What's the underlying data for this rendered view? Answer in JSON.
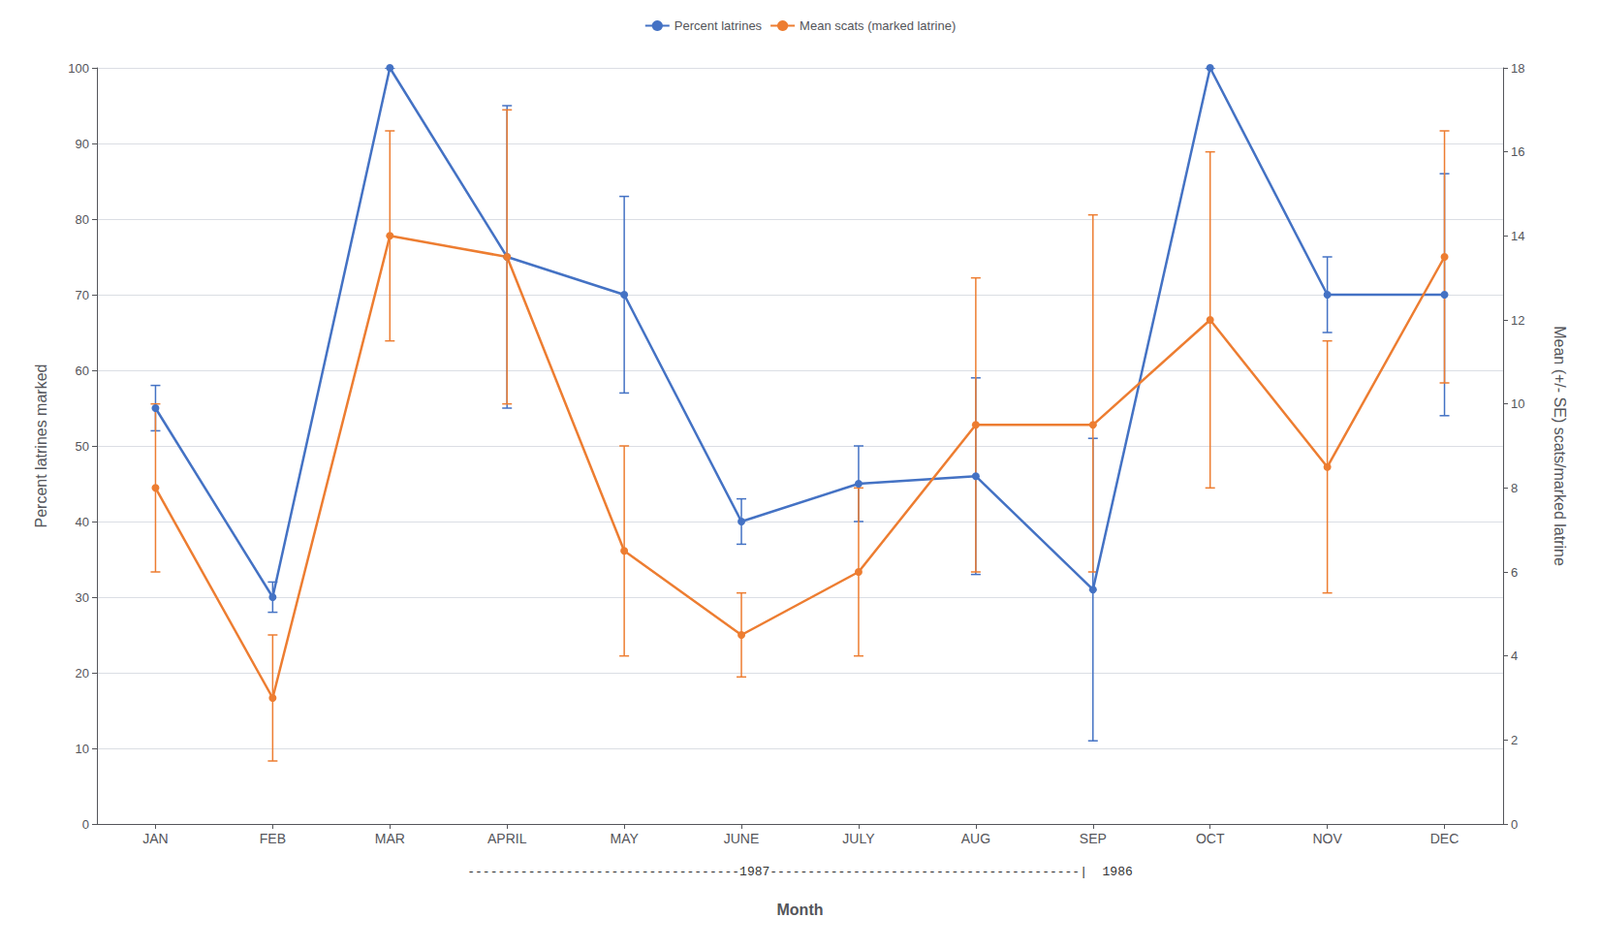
{
  "chart_data": {
    "type": "line",
    "categories": [
      "JAN",
      "FEB",
      "MAR",
      "APRIL",
      "MAY",
      "JUNE",
      "JULY",
      "AUG",
      "SEP",
      "OCT",
      "NOV",
      "DEC"
    ],
    "xlabel": "Month",
    "ylabel": "Percent latrines marked",
    "y2label": "Mean (+/- SE) scats/marked latrine",
    "annotation": "------------------------------------1987-----------------------------------------|  1986",
    "ylim": [
      0,
      100
    ],
    "yticks": [
      0,
      10,
      20,
      30,
      40,
      50,
      60,
      70,
      80,
      90,
      100
    ],
    "y2lim": [
      0,
      18
    ],
    "y2ticks": [
      0,
      2,
      4,
      6,
      8,
      10,
      12,
      14,
      16,
      18
    ],
    "grid": true,
    "legend": "top",
    "series": [
      {
        "name": "Percent latrines",
        "color": "#4472C4",
        "marker": "circle",
        "axis": "y",
        "values": [
          55,
          30,
          100,
          75,
          70,
          40,
          45,
          46,
          31,
          100,
          70,
          70
        ],
        "error_lower": [
          3,
          2,
          0,
          20,
          13,
          3,
          5,
          13,
          20,
          0,
          5,
          16
        ],
        "error_upper": [
          3,
          2,
          0,
          20,
          13,
          3,
          5,
          13,
          20,
          0,
          5,
          16
        ]
      },
      {
        "name": "Mean scats (marked latrine)",
        "color": "#ED7D31",
        "marker": "circle",
        "axis": "y2",
        "values": [
          8.0,
          3.0,
          14.0,
          13.5,
          6.5,
          4.5,
          6.0,
          9.5,
          9.5,
          12.0,
          8.5,
          13.5
        ],
        "error_lower": [
          2.0,
          1.5,
          2.5,
          3.5,
          2.5,
          1.0,
          2.0,
          3.5,
          3.5,
          4.0,
          3.0,
          3.0
        ],
        "error_upper": [
          2.0,
          1.5,
          2.5,
          3.5,
          2.5,
          1.0,
          2.0,
          3.5,
          5.0,
          4.0,
          3.0,
          3.0
        ]
      }
    ]
  }
}
